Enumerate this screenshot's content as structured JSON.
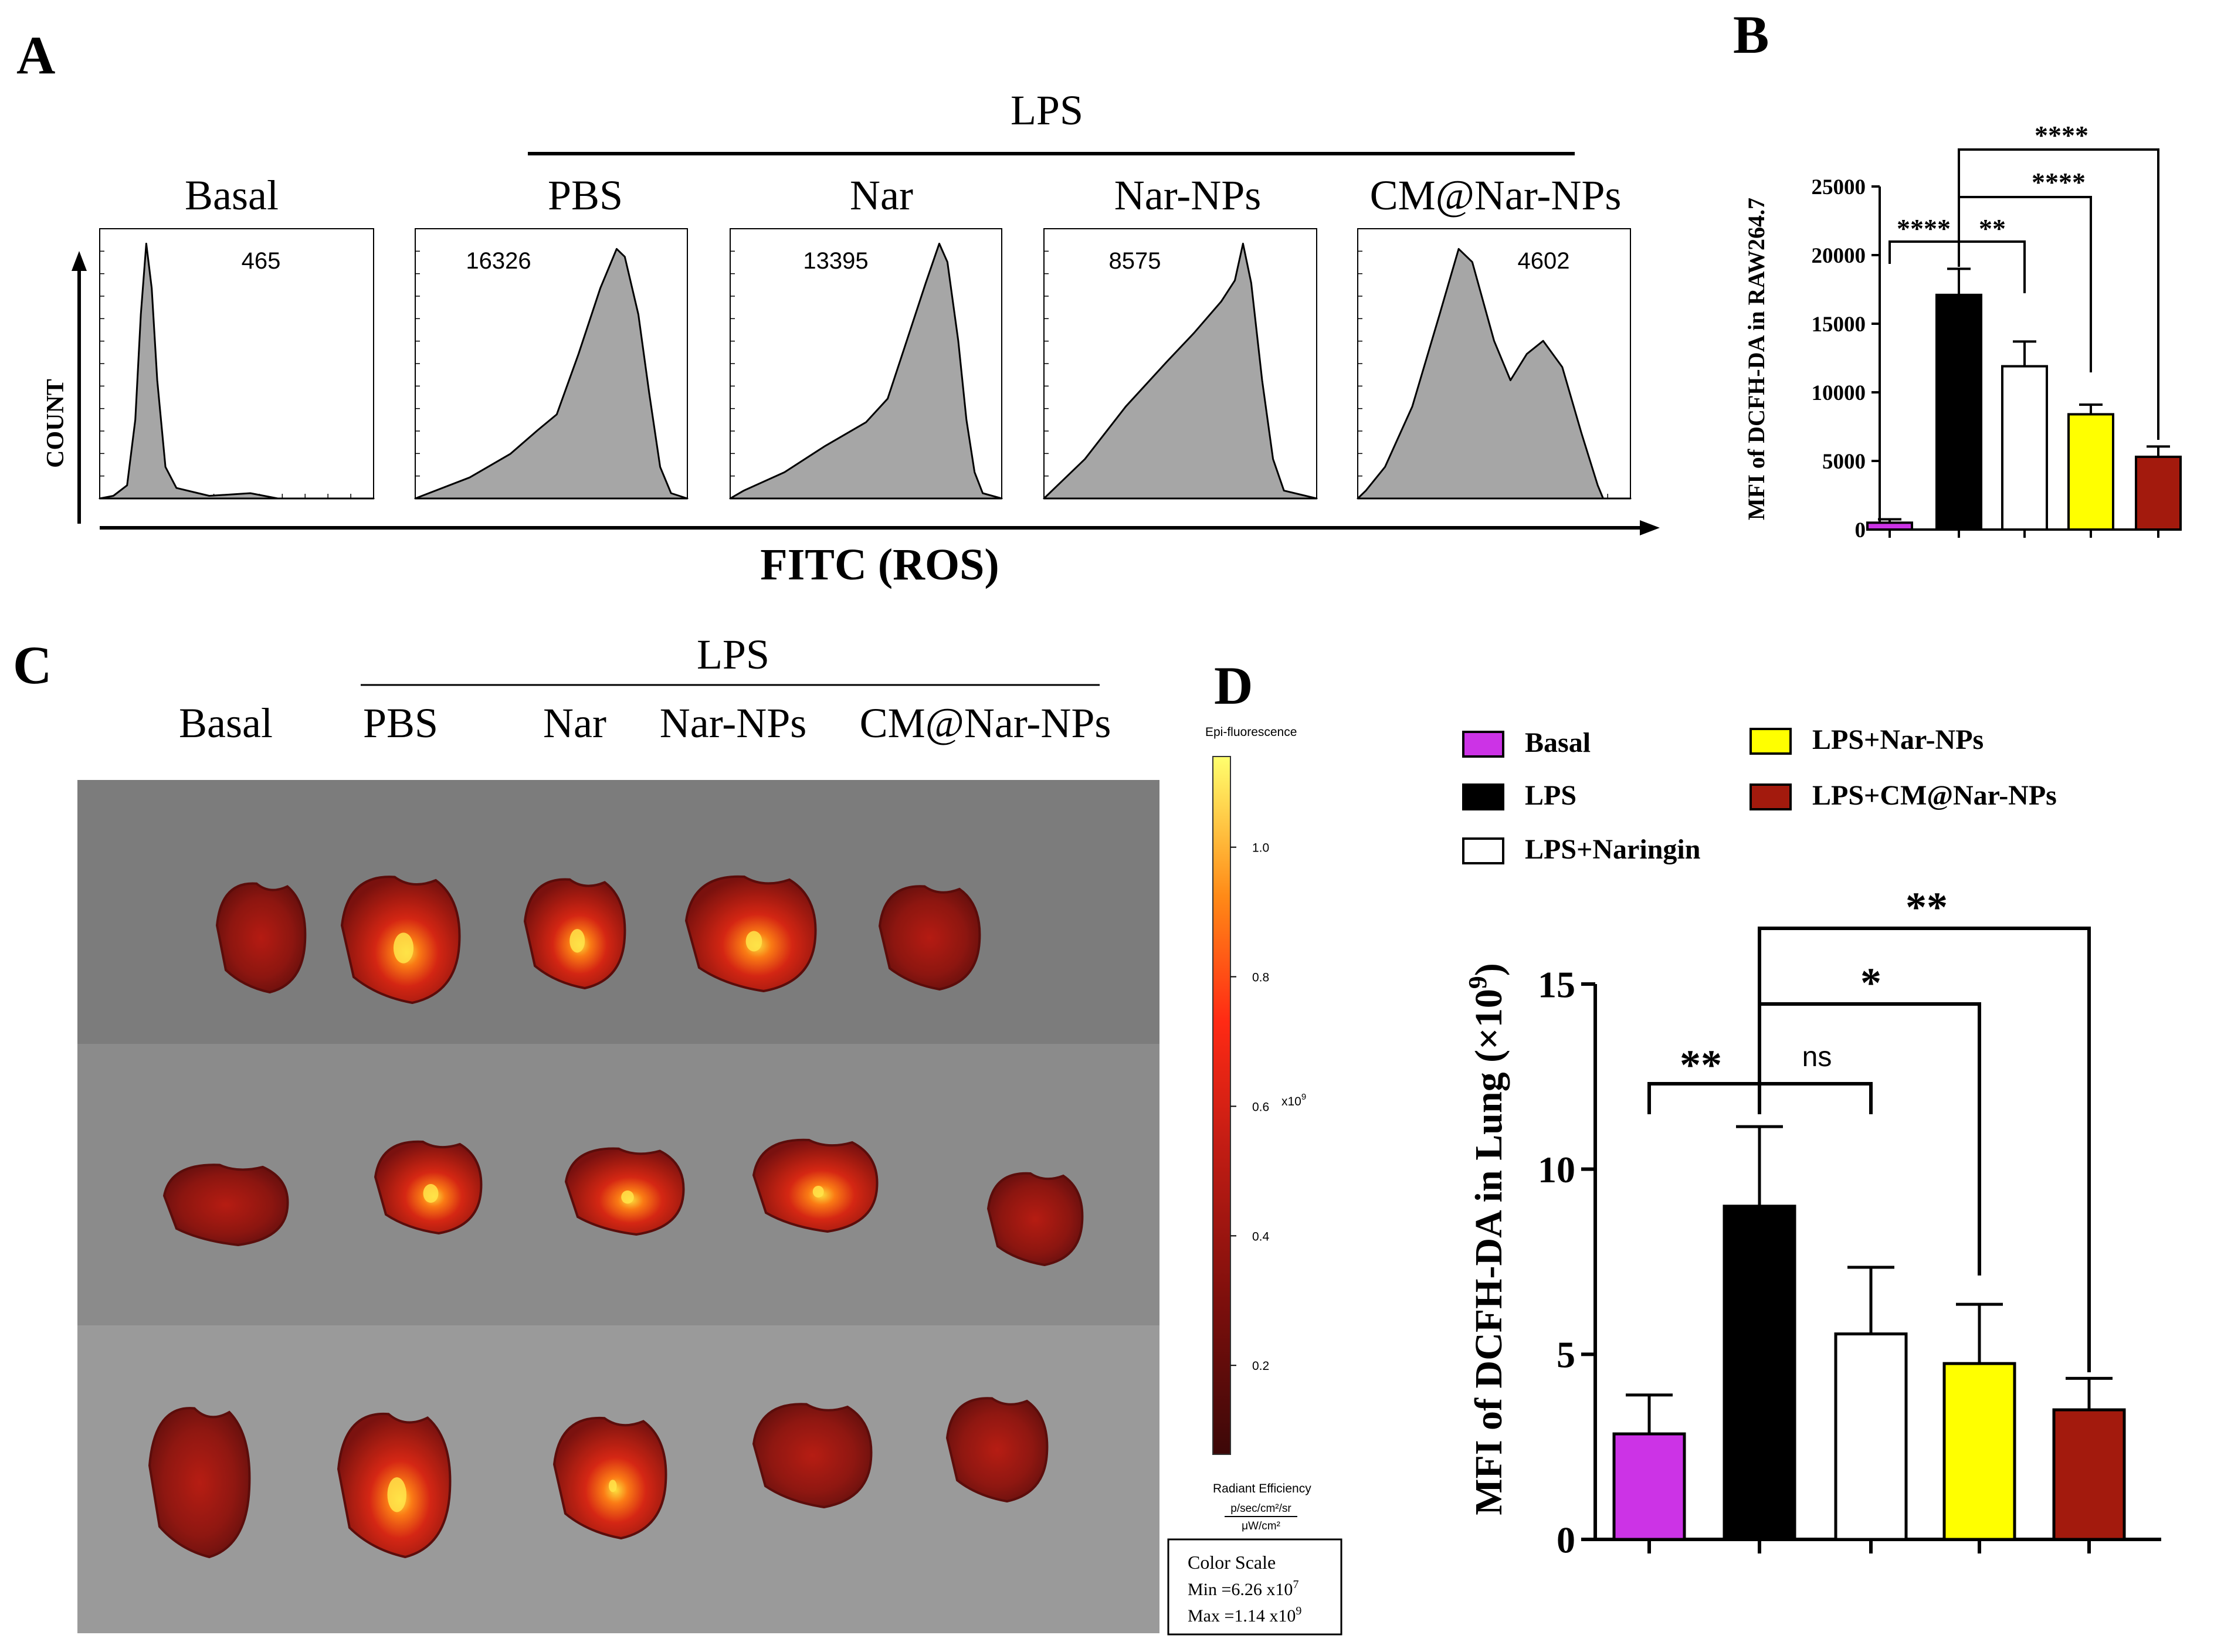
{
  "panel_labels": {
    "a": "A",
    "b": "B",
    "c": "C",
    "d": "D"
  },
  "colors": {
    "basal": "#cc33e6",
    "lps": "#000000",
    "naringin": "#ffffff",
    "nar_nps": "#ffff00",
    "cm_nar_nps": "#a31a0d",
    "histogram_fill": "#a6a6a6"
  },
  "panel_a": {
    "lps_label": "LPS",
    "x_axis_label": "FITC (ROS)",
    "y_axis_label": "COUNT",
    "histograms": [
      {
        "label": "Basal",
        "mfi": "465",
        "shape": "basal"
      },
      {
        "label": "PBS",
        "mfi": "16326",
        "shape": "pbs"
      },
      {
        "label": "Nar",
        "mfi": "13395",
        "shape": "nar"
      },
      {
        "label": "Nar-NPs",
        "mfi": "8575",
        "shape": "narnps"
      },
      {
        "label": "CM@Nar-NPs",
        "mfi": "4602",
        "shape": "cm"
      }
    ]
  },
  "panel_c": {
    "lps_label": "LPS",
    "columns": [
      "Basal",
      "PBS",
      "Nar",
      "Nar-NPs",
      "CM@Nar-NPs"
    ],
    "colorbar": {
      "title": "Epi-fluorescence",
      "ticks": [
        "1.0",
        "0.8",
        "0.6",
        "0.4",
        "0.2"
      ],
      "tick_values": [
        1.0,
        0.8,
        0.6,
        0.4,
        0.2
      ],
      "exponent": "x10",
      "exponent_power": "9",
      "units_title": "Radiant Efficiency",
      "units_numerator": "p/sec/cm²/sr",
      "units_denominator": "μW/cm²"
    },
    "color_scale_box": {
      "title": "Color Scale",
      "min_label": "Min =6.26 x10",
      "min_exp": "7",
      "max_label": "Max =1.14 x10",
      "max_exp": "9"
    }
  },
  "chart_data": [
    {
      "id": "B",
      "type": "bar",
      "categories": [
        "Basal",
        "LPS",
        "LPS+Naringin",
        "LPS+Nar-NPs",
        "LPS+CM@Nar-NPs"
      ],
      "values": [
        500,
        17100,
        11900,
        8400,
        5300
      ],
      "errors": [
        250,
        1900,
        1800,
        700,
        750
      ],
      "colors": [
        "#cc33e6",
        "#000000",
        "#ffffff",
        "#ffff00",
        "#a31a0d"
      ],
      "ylabel": "MFI of DCFH-DA in RAW264.7",
      "ylim": [
        0,
        25000
      ],
      "yticks": [
        "0",
        "5000",
        "10000",
        "15000",
        "20000",
        "25000"
      ],
      "ytick_values": [
        0,
        5000,
        10000,
        15000,
        20000,
        25000
      ],
      "significance": [
        {
          "from": 0,
          "to": 1,
          "label": "****"
        },
        {
          "from": 1,
          "to": 2,
          "label": "**"
        },
        {
          "from": 1,
          "to": 3,
          "label": "****"
        },
        {
          "from": 1,
          "to": 4,
          "label": "****"
        }
      ]
    },
    {
      "id": "D",
      "type": "bar",
      "categories": [
        "Basal",
        "LPS",
        "LPS+Naringin",
        "LPS+Nar-NPs",
        "LPS+CM@Nar-NPs"
      ],
      "values": [
        2.85,
        9.0,
        5.55,
        4.75,
        3.5
      ],
      "errors": [
        1.05,
        2.15,
        1.8,
        1.6,
        0.85
      ],
      "colors": [
        "#cc33e6",
        "#000000",
        "#ffffff",
        "#ffff00",
        "#a31a0d"
      ],
      "ylabel": "MFI of DCFH-DA in Lung (×10",
      "ylabel_exp": "9",
      "ylabel_close": ")",
      "ylim": [
        0,
        15
      ],
      "yticks": [
        "0",
        "5",
        "10",
        "15"
      ],
      "ytick_values": [
        0,
        5,
        10,
        15
      ],
      "legend": [
        "Basal",
        "LPS",
        "LPS+Naringin",
        "LPS+Nar-NPs",
        "LPS+CM@Nar-NPs"
      ],
      "legend_position": "top",
      "significance": [
        {
          "from": 0,
          "to": 1,
          "label": "**"
        },
        {
          "from": 1,
          "to": 2,
          "label": "ns"
        },
        {
          "from": 1,
          "to": 3,
          "label": "*"
        },
        {
          "from": 1,
          "to": 4,
          "label": "**"
        }
      ]
    }
  ]
}
